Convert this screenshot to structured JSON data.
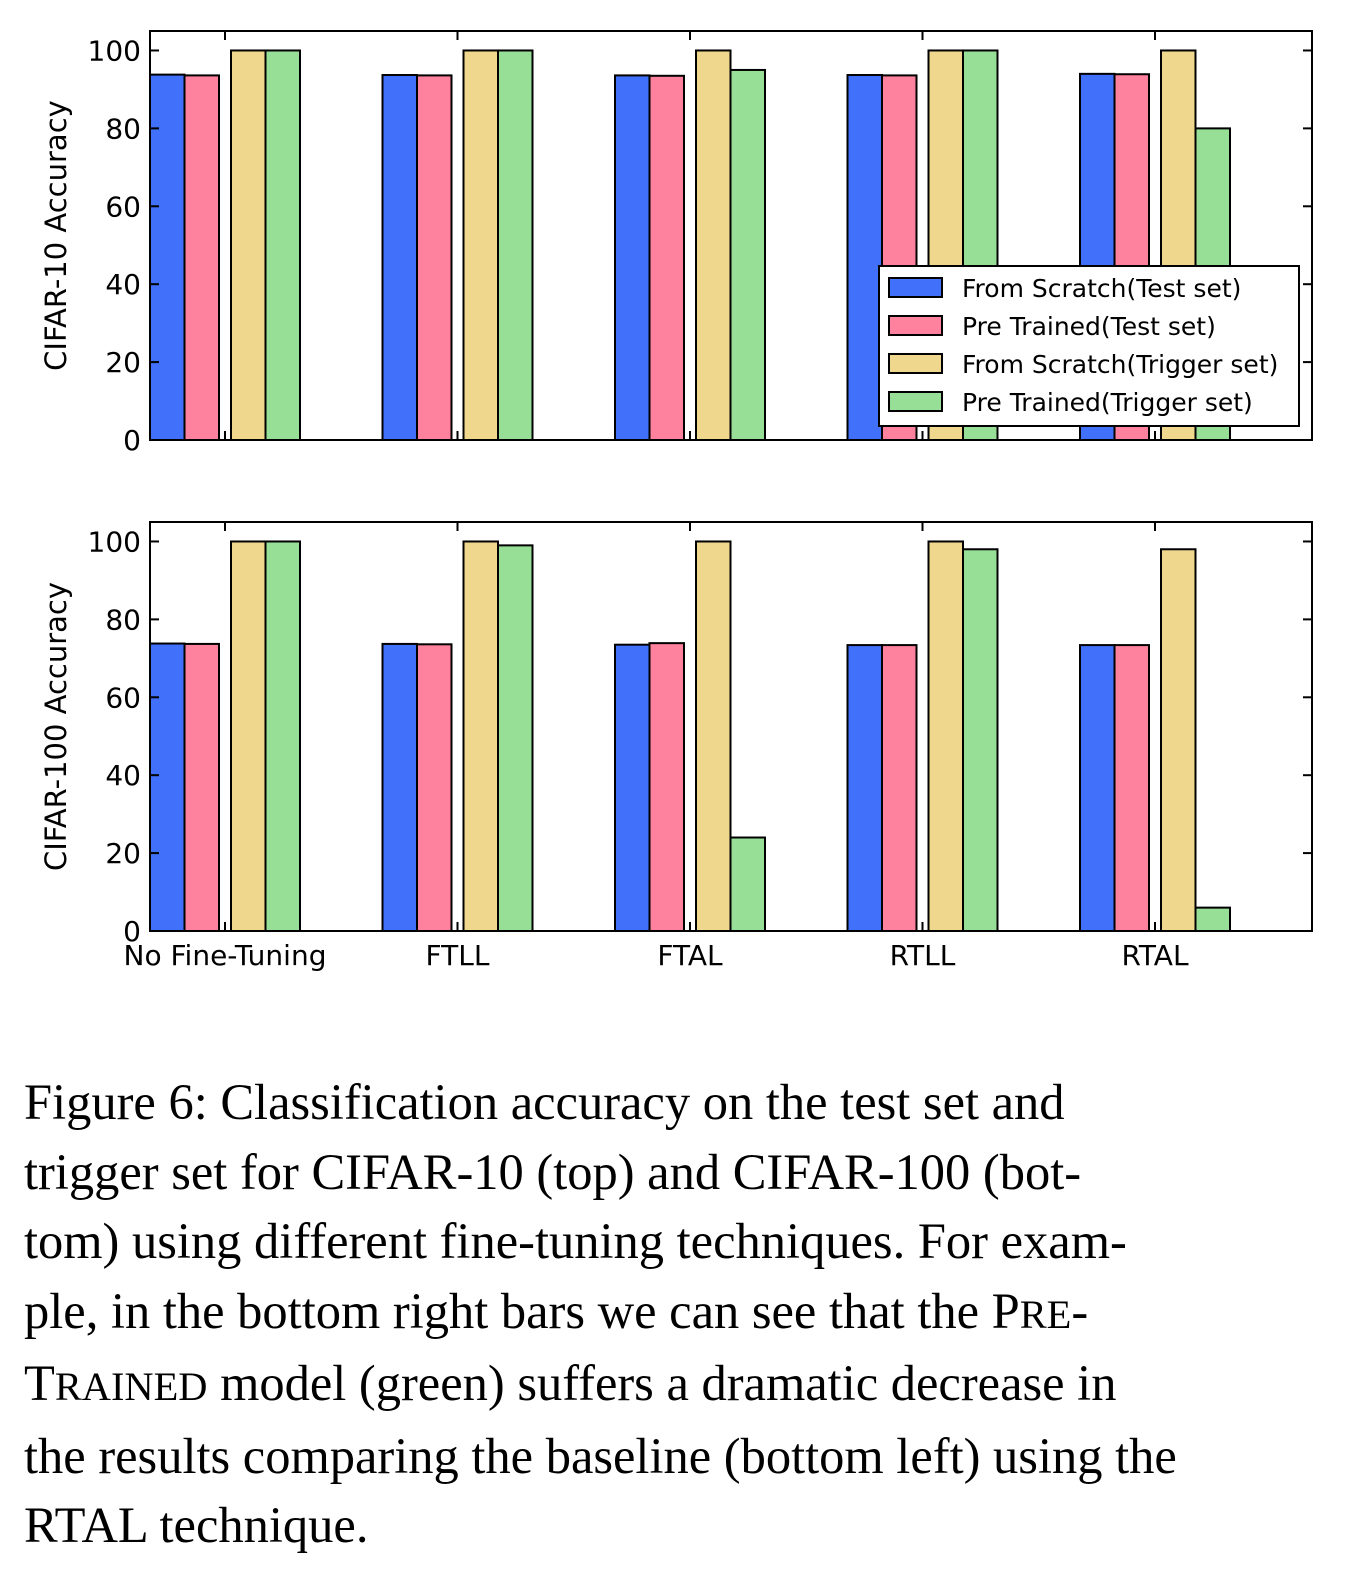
{
  "chart_data": [
    {
      "type": "bar",
      "ylabel": "CIFAR-10 Accuracy",
      "ylim": [
        0,
        105
      ],
      "yticks": [
        0,
        20,
        40,
        60,
        80,
        100
      ],
      "categories": [
        "No Fine-Tuning",
        "FTLL",
        "FTAL",
        "RTLL",
        "RTAL"
      ],
      "show_category_labels": false,
      "series": [
        {
          "name": "From Scratch(Test set)",
          "color": "#4171fb",
          "values": [
            93.8,
            93.7,
            93.6,
            93.7,
            94.0
          ]
        },
        {
          "name": "Pre Trained(Test set)",
          "color": "#fe819d",
          "values": [
            93.6,
            93.6,
            93.5,
            93.6,
            93.9
          ]
        },
        {
          "name": "From Scratch(Trigger set)",
          "color": "#f0d78e",
          "values": [
            100,
            100,
            100,
            100,
            100
          ]
        },
        {
          "name": "Pre Trained(Trigger set)",
          "color": "#97de96",
          "values": [
            100,
            100,
            95,
            100,
            80
          ]
        }
      ],
      "legend": "lower-right",
      "grid": false
    },
    {
      "type": "bar",
      "ylabel": "CIFAR-100 Accuracy",
      "ylim": [
        0,
        105
      ],
      "yticks": [
        0,
        20,
        40,
        60,
        80,
        100
      ],
      "categories": [
        "No Fine-Tuning",
        "FTLL",
        "FTAL",
        "RTLL",
        "RTAL"
      ],
      "show_category_labels": true,
      "series": [
        {
          "name": "From Scratch(Test set)",
          "color": "#4171fb",
          "values": [
            73.8,
            73.7,
            73.5,
            73.4,
            73.4
          ]
        },
        {
          "name": "Pre Trained(Test set)",
          "color": "#fe819d",
          "values": [
            73.7,
            73.6,
            73.9,
            73.4,
            73.4
          ]
        },
        {
          "name": "From Scratch(Trigger set)",
          "color": "#f0d78e",
          "values": [
            100,
            100,
            100,
            100,
            98
          ]
        },
        {
          "name": "Pre Trained(Trigger set)",
          "color": "#97de96",
          "values": [
            100,
            99,
            24,
            98,
            6
          ]
        }
      ],
      "legend": "none",
      "grid": false
    }
  ],
  "caption": {
    "line1": "Figure 6:  Classification accuracy on the test set and",
    "line2": "trigger set for CIFAR-10 (top) and CIFAR-100 (bot-",
    "line3": "tom) using different fine-tuning techniques.  For exam-",
    "line4a": "ple, in the bottom right bars we can see that the P",
    "line4b": "RE",
    "line4c": "-",
    "line5a": "T",
    "line5b": "RAINED",
    "line5c": " model (green) suffers a dramatic decrease in",
    "line6": "the results comparing the baseline (bottom left) using the",
    "line7": "RTAL technique."
  }
}
